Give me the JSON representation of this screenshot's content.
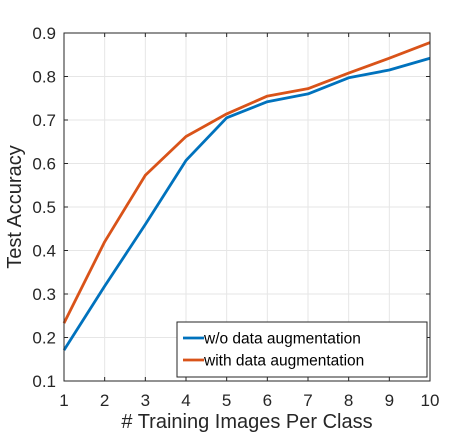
{
  "chart_data": {
    "type": "line",
    "xlabel": "# Training Images Per Class",
    "ylabel": "Test Accuracy",
    "x": [
      1,
      2,
      3,
      4,
      5,
      6,
      7,
      8,
      9,
      10
    ],
    "xlim": [
      1,
      10
    ],
    "ylim": [
      0.1,
      0.9
    ],
    "xticks": [
      "1",
      "2",
      "3",
      "4",
      "5",
      "6",
      "7",
      "8",
      "9",
      "10"
    ],
    "yticks": [
      "0.1",
      "0.2",
      "0.3",
      "0.4",
      "0.5",
      "0.6",
      "0.7",
      "0.8",
      "0.9"
    ],
    "grid": true,
    "legend_position": "bottom-right",
    "series": [
      {
        "name": "w/o data augmentation",
        "color": "#0072BD",
        "values": [
          0.171,
          0.318,
          0.46,
          0.607,
          0.705,
          0.742,
          0.76,
          0.797,
          0.815,
          0.842
        ]
      },
      {
        "name": "with data augmentation",
        "color": "#D95319",
        "values": [
          0.233,
          0.42,
          0.573,
          0.662,
          0.714,
          0.755,
          0.772,
          0.808,
          0.842,
          0.878
        ]
      }
    ]
  }
}
